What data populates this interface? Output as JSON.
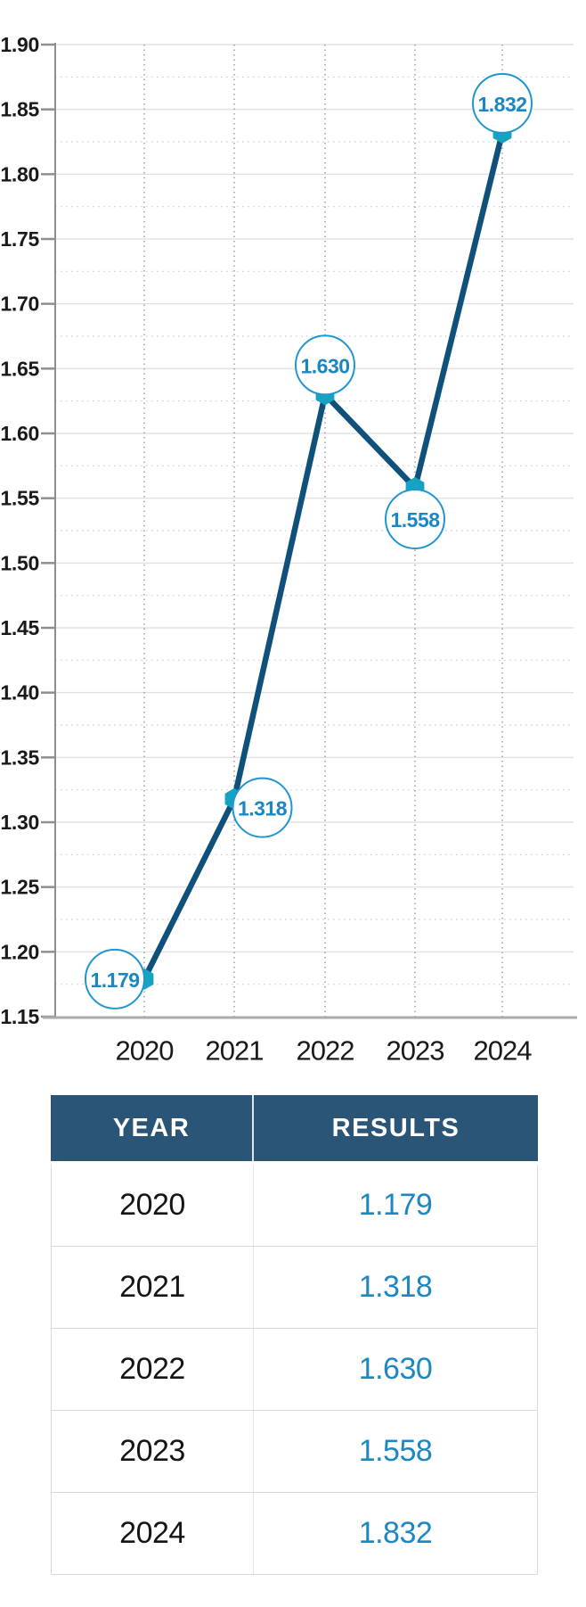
{
  "chart_data": {
    "type": "line",
    "title": "",
    "xlabel": "",
    "ylabel": "",
    "categories": [
      "2020",
      "2021",
      "2022",
      "2023",
      "2024"
    ],
    "values": [
      1.179,
      1.318,
      1.63,
      1.558,
      1.832
    ],
    "point_labels": [
      "1.179",
      "1.318",
      "1.630",
      "1.558",
      "1.832"
    ],
    "label_positions": [
      "left",
      "right",
      "above",
      "below",
      "above"
    ],
    "ylim": [
      1.15,
      1.9
    ],
    "ytick_step": 0.05,
    "yticks": [
      "1.90",
      "1.85",
      "1.80",
      "1.75",
      "1.70",
      "1.65",
      "1.60",
      "1.55",
      "1.50",
      "1.45",
      "1.40",
      "1.35",
      "1.30",
      "1.25",
      "1.20",
      "1.15"
    ],
    "grid": {
      "horizontal_major": "solid",
      "horizontal_minor": "dotted",
      "vertical": "dotted",
      "legend": "none"
    },
    "colors": {
      "line": "#10517b",
      "marker": "#16a2c1",
      "point_label_text": "#1a87c4",
      "point_label_circle": "#2196cf",
      "axis": "#8f8f8f",
      "baseline": "#ababab",
      "grid_major": "#e2e2e2",
      "grid_minor": "#cccccc",
      "grid_vertical": "#999999",
      "tick_text": "#1a1a1a"
    }
  },
  "table": {
    "headers": [
      "YEAR",
      "RESULTS"
    ],
    "header_bg": "#2b5577",
    "result_color": "#1d87c2",
    "rows": [
      {
        "year": "2020",
        "result": "1.179"
      },
      {
        "year": "2021",
        "result": "1.318"
      },
      {
        "year": "2022",
        "result": "1.630"
      },
      {
        "year": "2023",
        "result": "1.558"
      },
      {
        "year": "2024",
        "result": "1.832"
      }
    ]
  }
}
